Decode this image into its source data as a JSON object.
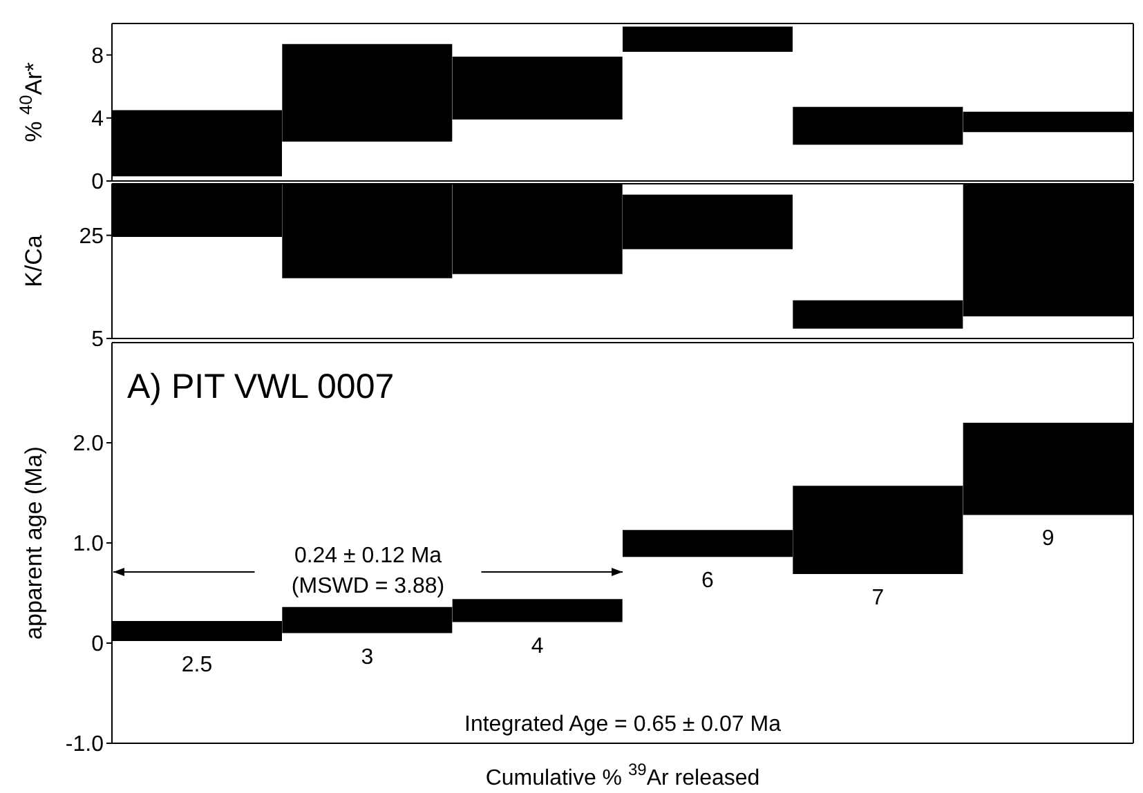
{
  "chart_data": [
    {
      "type": "bar",
      "ylabel": "% $^{40}$Ar*",
      "categories": [
        null,
        null,
        null,
        null,
        null,
        null
      ],
      "base": [
        0.3,
        2.5,
        3.9,
        8.2,
        2.3,
        3.1
      ],
      "values": [
        4.2,
        6.2,
        4.0,
        1.6,
        2.4,
        1.3
      ],
      "color": "#000000",
      "ylim": [
        0,
        10
      ],
      "yticks": [
        0,
        4,
        8
      ],
      "tick_labels": "y"
    },
    {
      "type": "bar",
      "ylabel": "K/Ca",
      "categories": [
        null,
        null,
        null,
        null,
        null,
        null
      ],
      "base": [
        24.7,
        16.7,
        17.5,
        22.3,
        6.9,
        9.3
      ],
      "values": [
        10.3,
        18.3,
        17.5,
        10.6,
        5.5,
        25.7
      ],
      "color": "#000000",
      "ylim": [
        5,
        35
      ],
      "yticks": [
        5,
        25
      ],
      "tick_labels": "y"
    },
    {
      "type": "bar",
      "title": "A) PIT VWL 0007",
      "xlabel": "Cumulative % $^{39}$Ar released",
      "ylabel": "apparent age (Ma)",
      "categories": [
        "2.5",
        "3",
        "4",
        "6",
        "7",
        "9"
      ],
      "base": [
        0.02,
        0.1,
        0.21,
        0.86,
        0.69,
        1.28
      ],
      "values": [
        0.2,
        0.26,
        0.23,
        0.27,
        0.88,
        0.92
      ],
      "color": "#000000",
      "ylim": [
        -1,
        3
      ],
      "yticks": [
        {
          "value": -1,
          "label": "-1.0"
        },
        0,
        {
          "value": 1,
          "label": "1.0"
        },
        {
          "value": 2,
          "label": "2.0"
        }
      ],
      "annotations": [
        "0.24 ± 0.12 Ma\n(MSWD = 3.88)",
        "Integrated Age = 0.65 ± 0.07 Ma"
      ]
    }
  ]
}
